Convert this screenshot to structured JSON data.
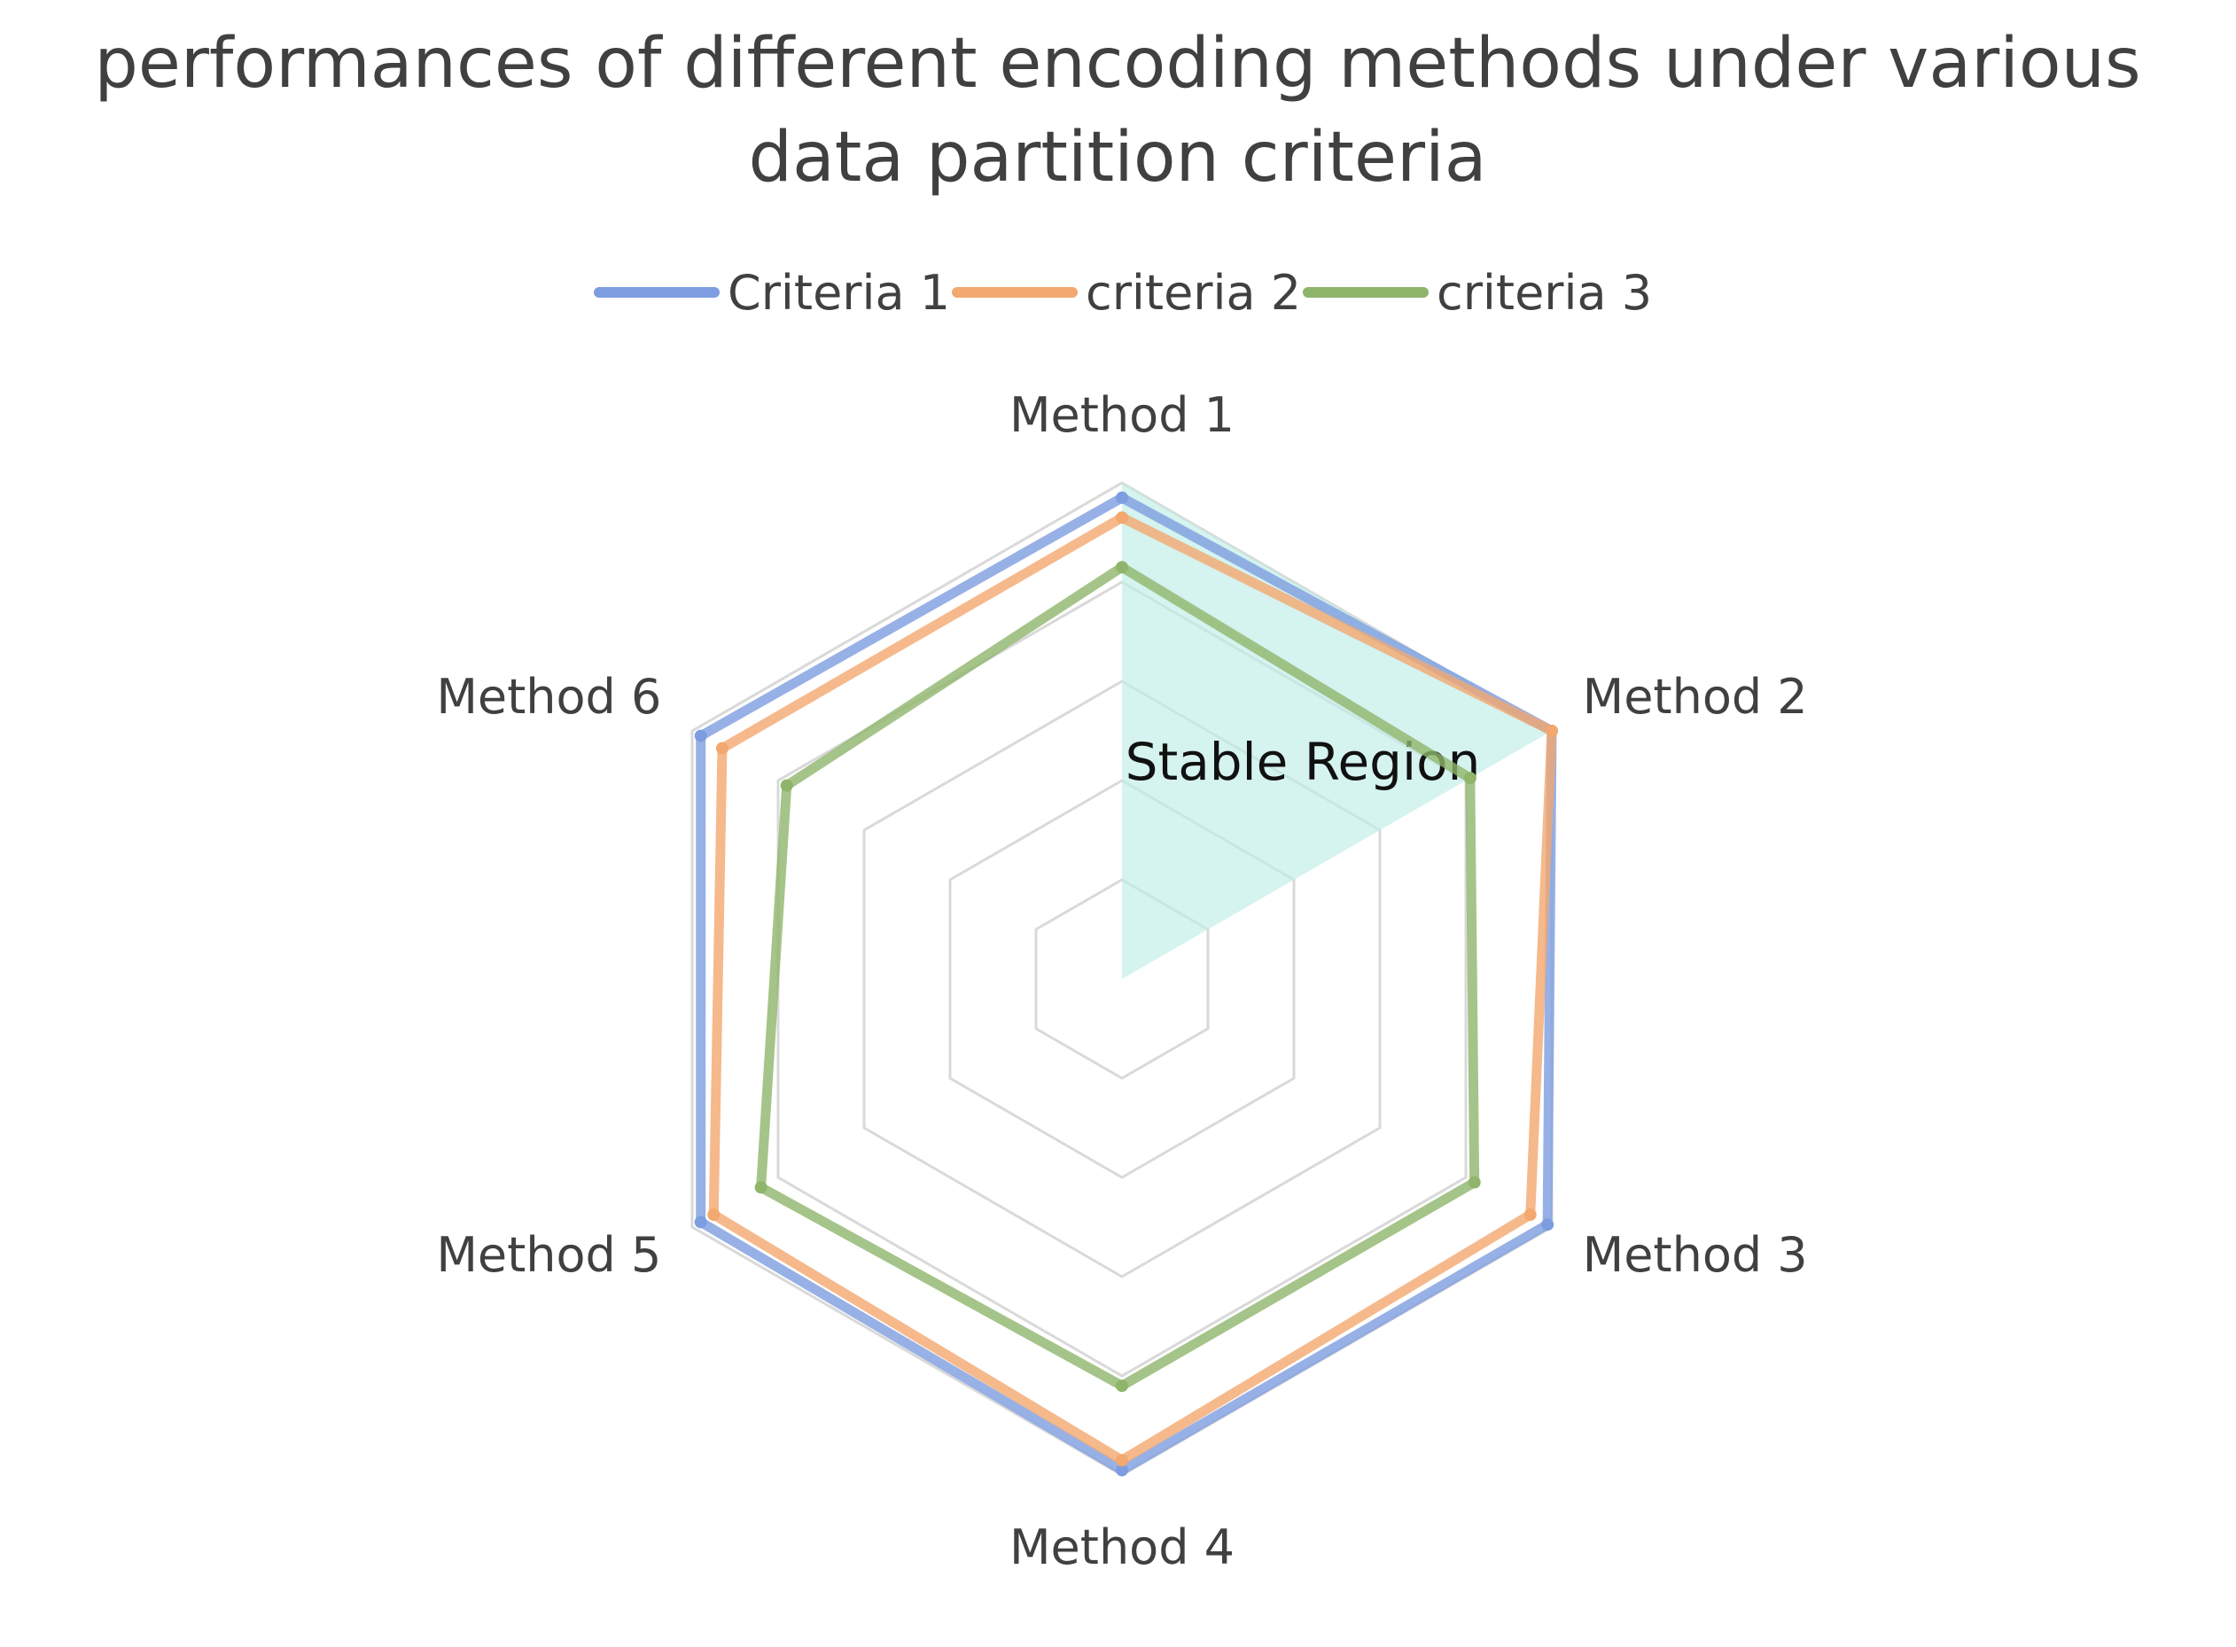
{
  "chart_data": {
    "type": "radar",
    "title": "performances of different encoding methods under various data partition criteria",
    "title_lines": [
      "performances of different encoding methods under various",
      "data partition criteria"
    ],
    "categories": [
      "Method 1",
      "Method 2",
      "Method 3",
      "Method 4",
      "Method 5",
      "Method 6"
    ],
    "rlim": [
      0,
      100
    ],
    "ring_values": [
      20,
      40,
      60,
      80,
      100
    ],
    "series": [
      {
        "name": "Criteria 1",
        "color": "#7d9de0",
        "values": [
          97,
          100,
          99,
          99,
          98,
          98
        ]
      },
      {
        "name": "criteria 2",
        "color": "#f2a86f",
        "values": [
          93,
          100,
          95,
          97,
          95,
          93
        ]
      },
      {
        "name": "criteria 3",
        "color": "#8fb56b",
        "values": [
          83,
          81,
          82,
          82,
          84,
          78
        ]
      }
    ],
    "annotation": {
      "label": "Stable Region",
      "color": "#bfece6",
      "vertex_values": [
        [
          0,
          0
        ],
        [
          1,
          0
        ],
        [
          2,
          0
        ]
      ]
    },
    "legend_position": "top",
    "grid": true
  }
}
